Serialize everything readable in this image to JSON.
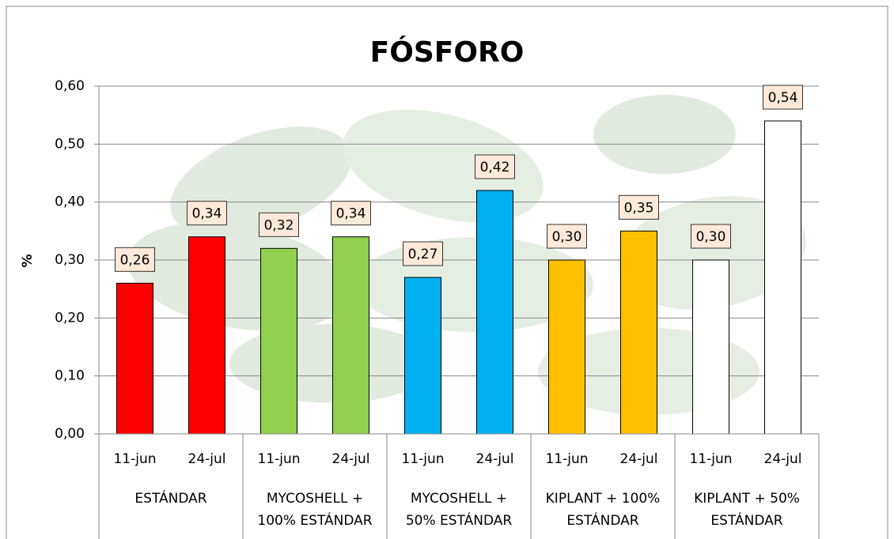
{
  "chart_data": {
    "type": "bar",
    "title": "FÓSFORO",
    "y_label": "%",
    "categories": [
      "11-jun",
      "24-jul",
      "11-jun",
      "24-jul",
      "11-jun",
      "24-jul",
      "11-jun",
      "24-jul",
      "11-jun",
      "24-jul"
    ],
    "values": [
      0.26,
      0.34,
      0.32,
      0.34,
      0.27,
      0.42,
      0.3,
      0.35,
      0.3,
      0.54
    ],
    "value_labels": [
      "0,26",
      "0,34",
      "0,32",
      "0,34",
      "0,27",
      "0,42",
      "0,30",
      "0,35",
      "0,30",
      "0,54"
    ],
    "groups": [
      {
        "lines": [
          "ESTÁNDAR"
        ],
        "color": "#ff0000"
      },
      {
        "lines": [
          "MYCOSHELL +",
          "100% ESTÁNDAR"
        ],
        "color": "#92d050"
      },
      {
        "lines": [
          "MYCOSHELL +",
          "50% ESTÁNDAR"
        ],
        "color": "#00b0f0"
      },
      {
        "lines": [
          "KIPLANT + 100%",
          "ESTÁNDAR"
        ],
        "color": "#ffc000"
      },
      {
        "lines": [
          "KIPLANT + 50%",
          "ESTÁNDAR"
        ],
        "color": "#ffffff"
      }
    ],
    "ylim": [
      0,
      0.6
    ],
    "yticks": [
      {
        "value": 0,
        "label": "0,00"
      },
      {
        "value": 0.1,
        "label": "0,10"
      },
      {
        "value": 0.2,
        "label": "0,20"
      },
      {
        "value": 0.3,
        "label": "0,30"
      },
      {
        "value": 0.4,
        "label": "0,40"
      },
      {
        "value": 0.5,
        "label": "0,50"
      },
      {
        "value": 0.6,
        "label": "0,60"
      }
    ],
    "grid": true
  }
}
